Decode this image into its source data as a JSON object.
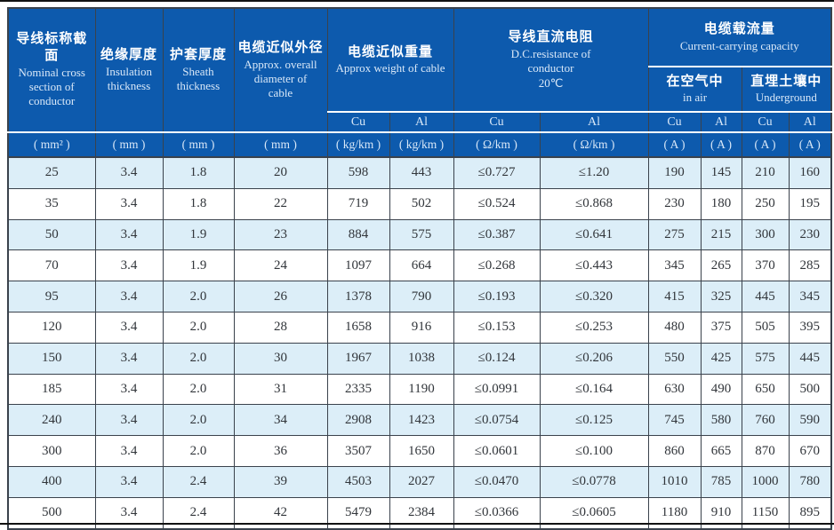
{
  "table": {
    "header": {
      "col1": {
        "zh": "导线标称截面",
        "en": "Nominal cross section of conductor"
      },
      "col2": {
        "zh": "绝缘厚度",
        "en": "Insulation thickness"
      },
      "col3": {
        "zh": "护套厚度",
        "en": "Sheath thickness"
      },
      "col4": {
        "zh": "电缆近似外径",
        "en": "Approx. overall diameter of cable"
      },
      "weight_group": {
        "zh": "电缆近似重量",
        "en": "Approx weight of cable"
      },
      "resistance_group": {
        "zh": "导线直流电阻",
        "en": "D.C.resistance of conductor",
        "temp": "20℃"
      },
      "capacity_group": {
        "zh": "电缆载流量",
        "en": "Current-carrying capacity"
      },
      "air": {
        "zh": "在空气中",
        "en": "in air"
      },
      "underground": {
        "zh": "直埋土壤中",
        "en": "Underground"
      }
    },
    "metal_row": [
      "Cu",
      "Al",
      "Cu",
      "Al",
      "Cu",
      "Al",
      "Cu",
      "Al"
    ],
    "units": [
      "( mm² )",
      "( mm )",
      "( mm )",
      "( mm )",
      "( kg/km )",
      "( kg/km )",
      "( Ω/km )",
      "( Ω/km )",
      "( A )",
      "( A )",
      "( A )",
      "( A )"
    ],
    "rows": [
      [
        "25",
        "3.4",
        "1.8",
        "20",
        "598",
        "443",
        "≤0.727",
        "≤1.20",
        "190",
        "145",
        "210",
        "160"
      ],
      [
        "35",
        "3.4",
        "1.8",
        "22",
        "719",
        "502",
        "≤0.524",
        "≤0.868",
        "230",
        "180",
        "250",
        "195"
      ],
      [
        "50",
        "3.4",
        "1.9",
        "23",
        "884",
        "575",
        "≤0.387",
        "≤0.641",
        "275",
        "215",
        "300",
        "230"
      ],
      [
        "70",
        "3.4",
        "1.9",
        "24",
        "1097",
        "664",
        "≤0.268",
        "≤0.443",
        "345",
        "265",
        "370",
        "285"
      ],
      [
        "95",
        "3.4",
        "2.0",
        "26",
        "1378",
        "790",
        "≤0.193",
        "≤0.320",
        "415",
        "325",
        "445",
        "345"
      ],
      [
        "120",
        "3.4",
        "2.0",
        "28",
        "1658",
        "916",
        "≤0.153",
        "≤0.253",
        "480",
        "375",
        "505",
        "395"
      ],
      [
        "150",
        "3.4",
        "2.0",
        "30",
        "1967",
        "1038",
        "≤0.124",
        "≤0.206",
        "550",
        "425",
        "575",
        "445"
      ],
      [
        "185",
        "3.4",
        "2.0",
        "31",
        "2335",
        "1190",
        "≤0.0991",
        "≤0.164",
        "630",
        "490",
        "650",
        "500"
      ],
      [
        "240",
        "3.4",
        "2.0",
        "34",
        "2908",
        "1423",
        "≤0.0754",
        "≤0.125",
        "745",
        "580",
        "760",
        "590"
      ],
      [
        "300",
        "3.4",
        "2.0",
        "36",
        "3507",
        "1650",
        "≤0.0601",
        "≤0.100",
        "860",
        "665",
        "870",
        "670"
      ],
      [
        "400",
        "3.4",
        "2.4",
        "39",
        "4503",
        "2027",
        "≤0.0470",
        "≤0.0778",
        "1010",
        "785",
        "1000",
        "780"
      ],
      [
        "500",
        "3.4",
        "2.4",
        "42",
        "5479",
        "2384",
        "≤0.0366",
        "≤0.0605",
        "1180",
        "910",
        "1150",
        "895"
      ]
    ],
    "colors": {
      "header_bg": "#0d5aad",
      "header_text_zh": "#ffffff",
      "header_text_en": "#d9e8f8",
      "row_alt_bg": "#dceef8",
      "row_bg": "#ffffff",
      "border_dark": "#3a424c",
      "data_text": "#31353a",
      "rule_black": "#111111"
    }
  }
}
